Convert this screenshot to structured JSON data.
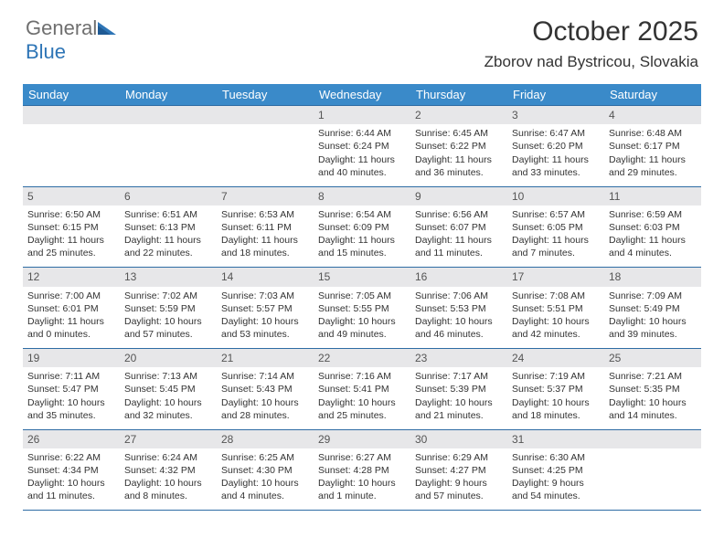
{
  "logo": {
    "word1": "General",
    "word2": "Blue"
  },
  "title": "October 2025",
  "location": "Zborov nad Bystricou, Slovakia",
  "colors": {
    "header_bg": "#3a8ac9",
    "header_text": "#ffffff",
    "daynum_bg": "#e7e7e9",
    "border": "#2e6ca4",
    "logo_gray": "#6f6f6f",
    "logo_blue": "#2e75b6"
  },
  "weekdays": [
    "Sunday",
    "Monday",
    "Tuesday",
    "Wednesday",
    "Thursday",
    "Friday",
    "Saturday"
  ],
  "weeks": [
    {
      "nums": [
        "",
        "",
        "",
        "1",
        "2",
        "3",
        "4"
      ],
      "cells": [
        {
          "sunrise": "",
          "sunset": "",
          "daylight": ""
        },
        {
          "sunrise": "",
          "sunset": "",
          "daylight": ""
        },
        {
          "sunrise": "",
          "sunset": "",
          "daylight": ""
        },
        {
          "sunrise": "Sunrise: 6:44 AM",
          "sunset": "Sunset: 6:24 PM",
          "daylight": "Daylight: 11 hours and 40 minutes."
        },
        {
          "sunrise": "Sunrise: 6:45 AM",
          "sunset": "Sunset: 6:22 PM",
          "daylight": "Daylight: 11 hours and 36 minutes."
        },
        {
          "sunrise": "Sunrise: 6:47 AM",
          "sunset": "Sunset: 6:20 PM",
          "daylight": "Daylight: 11 hours and 33 minutes."
        },
        {
          "sunrise": "Sunrise: 6:48 AM",
          "sunset": "Sunset: 6:17 PM",
          "daylight": "Daylight: 11 hours and 29 minutes."
        }
      ]
    },
    {
      "nums": [
        "5",
        "6",
        "7",
        "8",
        "9",
        "10",
        "11"
      ],
      "cells": [
        {
          "sunrise": "Sunrise: 6:50 AM",
          "sunset": "Sunset: 6:15 PM",
          "daylight": "Daylight: 11 hours and 25 minutes."
        },
        {
          "sunrise": "Sunrise: 6:51 AM",
          "sunset": "Sunset: 6:13 PM",
          "daylight": "Daylight: 11 hours and 22 minutes."
        },
        {
          "sunrise": "Sunrise: 6:53 AM",
          "sunset": "Sunset: 6:11 PM",
          "daylight": "Daylight: 11 hours and 18 minutes."
        },
        {
          "sunrise": "Sunrise: 6:54 AM",
          "sunset": "Sunset: 6:09 PM",
          "daylight": "Daylight: 11 hours and 15 minutes."
        },
        {
          "sunrise": "Sunrise: 6:56 AM",
          "sunset": "Sunset: 6:07 PM",
          "daylight": "Daylight: 11 hours and 11 minutes."
        },
        {
          "sunrise": "Sunrise: 6:57 AM",
          "sunset": "Sunset: 6:05 PM",
          "daylight": "Daylight: 11 hours and 7 minutes."
        },
        {
          "sunrise": "Sunrise: 6:59 AM",
          "sunset": "Sunset: 6:03 PM",
          "daylight": "Daylight: 11 hours and 4 minutes."
        }
      ]
    },
    {
      "nums": [
        "12",
        "13",
        "14",
        "15",
        "16",
        "17",
        "18"
      ],
      "cells": [
        {
          "sunrise": "Sunrise: 7:00 AM",
          "sunset": "Sunset: 6:01 PM",
          "daylight": "Daylight: 11 hours and 0 minutes."
        },
        {
          "sunrise": "Sunrise: 7:02 AM",
          "sunset": "Sunset: 5:59 PM",
          "daylight": "Daylight: 10 hours and 57 minutes."
        },
        {
          "sunrise": "Sunrise: 7:03 AM",
          "sunset": "Sunset: 5:57 PM",
          "daylight": "Daylight: 10 hours and 53 minutes."
        },
        {
          "sunrise": "Sunrise: 7:05 AM",
          "sunset": "Sunset: 5:55 PM",
          "daylight": "Daylight: 10 hours and 49 minutes."
        },
        {
          "sunrise": "Sunrise: 7:06 AM",
          "sunset": "Sunset: 5:53 PM",
          "daylight": "Daylight: 10 hours and 46 minutes."
        },
        {
          "sunrise": "Sunrise: 7:08 AM",
          "sunset": "Sunset: 5:51 PM",
          "daylight": "Daylight: 10 hours and 42 minutes."
        },
        {
          "sunrise": "Sunrise: 7:09 AM",
          "sunset": "Sunset: 5:49 PM",
          "daylight": "Daylight: 10 hours and 39 minutes."
        }
      ]
    },
    {
      "nums": [
        "19",
        "20",
        "21",
        "22",
        "23",
        "24",
        "25"
      ],
      "cells": [
        {
          "sunrise": "Sunrise: 7:11 AM",
          "sunset": "Sunset: 5:47 PM",
          "daylight": "Daylight: 10 hours and 35 minutes."
        },
        {
          "sunrise": "Sunrise: 7:13 AM",
          "sunset": "Sunset: 5:45 PM",
          "daylight": "Daylight: 10 hours and 32 minutes."
        },
        {
          "sunrise": "Sunrise: 7:14 AM",
          "sunset": "Sunset: 5:43 PM",
          "daylight": "Daylight: 10 hours and 28 minutes."
        },
        {
          "sunrise": "Sunrise: 7:16 AM",
          "sunset": "Sunset: 5:41 PM",
          "daylight": "Daylight: 10 hours and 25 minutes."
        },
        {
          "sunrise": "Sunrise: 7:17 AM",
          "sunset": "Sunset: 5:39 PM",
          "daylight": "Daylight: 10 hours and 21 minutes."
        },
        {
          "sunrise": "Sunrise: 7:19 AM",
          "sunset": "Sunset: 5:37 PM",
          "daylight": "Daylight: 10 hours and 18 minutes."
        },
        {
          "sunrise": "Sunrise: 7:21 AM",
          "sunset": "Sunset: 5:35 PM",
          "daylight": "Daylight: 10 hours and 14 minutes."
        }
      ]
    },
    {
      "nums": [
        "26",
        "27",
        "28",
        "29",
        "30",
        "31",
        ""
      ],
      "cells": [
        {
          "sunrise": "Sunrise: 6:22 AM",
          "sunset": "Sunset: 4:34 PM",
          "daylight": "Daylight: 10 hours and 11 minutes."
        },
        {
          "sunrise": "Sunrise: 6:24 AM",
          "sunset": "Sunset: 4:32 PM",
          "daylight": "Daylight: 10 hours and 8 minutes."
        },
        {
          "sunrise": "Sunrise: 6:25 AM",
          "sunset": "Sunset: 4:30 PM",
          "daylight": "Daylight: 10 hours and 4 minutes."
        },
        {
          "sunrise": "Sunrise: 6:27 AM",
          "sunset": "Sunset: 4:28 PM",
          "daylight": "Daylight: 10 hours and 1 minute."
        },
        {
          "sunrise": "Sunrise: 6:29 AM",
          "sunset": "Sunset: 4:27 PM",
          "daylight": "Daylight: 9 hours and 57 minutes."
        },
        {
          "sunrise": "Sunrise: 6:30 AM",
          "sunset": "Sunset: 4:25 PM",
          "daylight": "Daylight: 9 hours and 54 minutes."
        },
        {
          "sunrise": "",
          "sunset": "",
          "daylight": ""
        }
      ]
    }
  ]
}
